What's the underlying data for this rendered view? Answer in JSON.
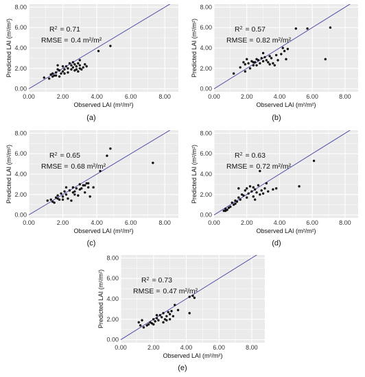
{
  "style": {
    "panel_background": "#ebebeb",
    "grid_color": "#ffffff",
    "point_color": "#111111",
    "line_color": "#3f3fa8"
  },
  "chart_data": [
    {
      "type": "scatter",
      "panel_label": "(a)",
      "xlabel": "Observed LAI (m²/m²)",
      "ylabel": "Predicted LAI (m²/m²)",
      "xlim": [
        0,
        8.8
      ],
      "ylim": [
        -0.3,
        8.3
      ],
      "x_ticks": [
        "0.00",
        "2.00",
        "4.00",
        "6.00",
        "8.00"
      ],
      "y_ticks": [
        "0.00",
        "2.00",
        "4.00",
        "6.00",
        "8.00"
      ],
      "stats": {
        "r2_label": "R",
        "r2_value": "= 0.71",
        "rmse_label": "RMSE =",
        "rmse_value": "0.4 m²/m²"
      },
      "reference_line": "1:1",
      "points": [
        [
          0.9,
          1.1
        ],
        [
          1.2,
          1.0
        ],
        [
          1.3,
          1.4
        ],
        [
          1.4,
          1.2
        ],
        [
          1.5,
          1.3
        ],
        [
          1.6,
          1.6
        ],
        [
          1.7,
          2.3
        ],
        [
          1.8,
          1.8
        ],
        [
          1.9,
          1.5
        ],
        [
          2.0,
          1.7
        ],
        [
          2.1,
          1.9
        ],
        [
          2.2,
          2.2
        ],
        [
          2.3,
          2.0
        ],
        [
          2.4,
          2.5
        ],
        [
          2.5,
          2.3
        ],
        [
          2.5,
          1.9
        ],
        [
          2.6,
          2.1
        ],
        [
          2.7,
          1.8
        ],
        [
          2.7,
          2.4
        ],
        [
          2.8,
          2.2
        ],
        [
          2.9,
          2.5
        ],
        [
          3.0,
          2.0
        ],
        [
          3.0,
          2.3
        ],
        [
          3.1,
          1.9
        ],
        [
          3.2,
          2.1
        ],
        [
          3.3,
          2.4
        ],
        [
          1.6,
          1.3
        ],
        [
          2.0,
          2.2
        ],
        [
          2.3,
          1.6
        ],
        [
          2.8,
          1.9
        ],
        [
          1.8,
          1.2
        ],
        [
          3.4,
          2.2
        ],
        [
          4.1,
          3.7
        ],
        [
          4.8,
          4.2
        ],
        [
          2.6,
          2.6
        ],
        [
          1.4,
          1.5
        ],
        [
          2.1,
          1.5
        ],
        [
          3.0,
          2.8
        ],
        [
          2.9,
          1.7
        ],
        [
          1.7,
          1.9
        ]
      ]
    },
    {
      "type": "scatter",
      "panel_label": "(b)",
      "xlabel": "Observed LAI (m²/m²)",
      "ylabel": "Predicted LAI (m²/m²)",
      "xlim": [
        0,
        8.8
      ],
      "ylim": [
        -0.3,
        8.3
      ],
      "x_ticks": [
        "0.00",
        "2.00",
        "4.00",
        "6.00",
        "8.00"
      ],
      "y_ticks": [
        "0.00",
        "2.00",
        "4.00",
        "6.00",
        "8.00"
      ],
      "stats": {
        "r2_label": "R",
        "r2_value": "= 0.57",
        "rmse_label": "RMSE =",
        "rmse_value": "0.82 m²/m²"
      },
      "reference_line": "1:1",
      "points": [
        [
          1.2,
          1.5
        ],
        [
          1.6,
          2.1
        ],
        [
          1.8,
          2.6
        ],
        [
          1.9,
          2.4
        ],
        [
          2.0,
          2.9
        ],
        [
          2.1,
          2.5
        ],
        [
          2.3,
          2.7
        ],
        [
          2.4,
          2.3
        ],
        [
          2.5,
          2.6
        ],
        [
          2.6,
          2.9
        ],
        [
          2.7,
          2.8
        ],
        [
          2.8,
          2.5
        ],
        [
          2.9,
          3.0
        ],
        [
          3.0,
          2.7
        ],
        [
          3.1,
          3.1
        ],
        [
          3.2,
          2.8
        ],
        [
          3.3,
          2.6
        ],
        [
          3.4,
          3.2
        ],
        [
          3.5,
          3.0
        ],
        [
          3.6,
          2.5
        ],
        [
          3.8,
          3.3
        ],
        [
          3.9,
          2.8
        ],
        [
          4.1,
          3.4
        ],
        [
          4.2,
          4.0
        ],
        [
          4.3,
          3.7
        ],
        [
          4.4,
          2.9
        ],
        [
          4.5,
          3.9
        ],
        [
          5.0,
          5.9
        ],
        [
          5.7,
          5.9
        ],
        [
          6.8,
          2.9
        ],
        [
          7.1,
          6.0
        ],
        [
          3.7,
          2.3
        ],
        [
          2.2,
          2.0
        ],
        [
          1.9,
          1.7
        ],
        [
          3.0,
          3.5
        ],
        [
          2.6,
          2.3
        ],
        [
          2.4,
          2.6
        ],
        [
          3.4,
          2.4
        ]
      ]
    },
    {
      "type": "scatter",
      "panel_label": "(c)",
      "xlabel": "Observed LAI (m²/m²)",
      "ylabel": "Predicted LAI (m²/m²)",
      "xlim": [
        0,
        8.8
      ],
      "ylim": [
        -0.3,
        8.3
      ],
      "x_ticks": [
        "0.00",
        "2.00",
        "4.00",
        "6.00",
        "8.00"
      ],
      "y_ticks": [
        "0.00",
        "2.00",
        "4.00",
        "6.00",
        "8.00"
      ],
      "stats": {
        "r2_label": "R",
        "r2_value": "= 0.65",
        "rmse_label": "RMSE =",
        "rmse_value": "0.68 m²/m²"
      },
      "reference_line": "1:1",
      "points": [
        [
          1.1,
          1.4
        ],
        [
          1.3,
          1.5
        ],
        [
          1.5,
          1.2
        ],
        [
          1.6,
          1.7
        ],
        [
          1.7,
          1.9
        ],
        [
          1.8,
          1.5
        ],
        [
          1.9,
          2.1
        ],
        [
          2.0,
          1.8
        ],
        [
          2.1,
          2.3
        ],
        [
          2.2,
          2.0
        ],
        [
          2.3,
          1.6
        ],
        [
          2.4,
          2.4
        ],
        [
          2.5,
          1.4
        ],
        [
          2.6,
          2.7
        ],
        [
          2.7,
          2.3
        ],
        [
          2.8,
          2.6
        ],
        [
          2.9,
          1.9
        ],
        [
          3.0,
          3.0
        ],
        [
          3.1,
          2.6
        ],
        [
          3.2,
          2.9
        ],
        [
          3.3,
          2.2
        ],
        [
          3.4,
          3.1
        ],
        [
          3.5,
          2.7
        ],
        [
          3.6,
          1.8
        ],
        [
          3.8,
          2.7
        ],
        [
          4.2,
          4.3
        ],
        [
          4.6,
          5.8
        ],
        [
          4.8,
          6.5
        ],
        [
          7.3,
          5.1
        ],
        [
          1.4,
          1.3
        ],
        [
          2.0,
          1.5
        ],
        [
          2.7,
          2.0
        ],
        [
          3.0,
          2.5
        ],
        [
          3.3,
          2.9
        ],
        [
          3.5,
          3.1
        ],
        [
          2.2,
          2.7
        ],
        [
          1.7,
          1.6
        ],
        [
          2.6,
          2.2
        ]
      ]
    },
    {
      "type": "scatter",
      "panel_label": "(d)",
      "xlabel": "Observed LAI (m²/m²)",
      "ylabel": "Predicted LAI (m²/m²)",
      "xlim": [
        0,
        8.8
      ],
      "ylim": [
        -0.3,
        8.3
      ],
      "x_ticks": [
        "0.00",
        "2.00",
        "4.00",
        "6.00",
        "8.00"
      ],
      "y_ticks": [
        "0.00",
        "2.00",
        "4.00",
        "6.00",
        "8.00"
      ],
      "stats": {
        "r2_label": "R",
        "r2_value": "= 0.63",
        "rmse_label": "RMSE =",
        "rmse_value": "0.72 m²/m²"
      },
      "reference_line": "1:1",
      "points": [
        [
          0.6,
          0.4
        ],
        [
          0.7,
          0.6
        ],
        [
          0.8,
          0.5
        ],
        [
          0.9,
          0.7
        ],
        [
          1.0,
          0.8
        ],
        [
          1.1,
          1.2
        ],
        [
          1.2,
          1.0
        ],
        [
          1.3,
          1.4
        ],
        [
          1.4,
          1.3
        ],
        [
          1.5,
          1.7
        ],
        [
          1.6,
          1.5
        ],
        [
          1.7,
          2.0
        ],
        [
          1.8,
          1.9
        ],
        [
          1.9,
          2.4
        ],
        [
          2.0,
          2.6
        ],
        [
          2.1,
          2.1
        ],
        [
          2.2,
          2.8
        ],
        [
          2.3,
          2.3
        ],
        [
          2.4,
          1.8
        ],
        [
          2.5,
          2.5
        ],
        [
          2.6,
          2.2
        ],
        [
          2.7,
          2.9
        ],
        [
          2.8,
          2.0
        ],
        [
          2.9,
          2.4
        ],
        [
          3.0,
          2.1
        ],
        [
          3.1,
          2.6
        ],
        [
          3.3,
          2.3
        ],
        [
          3.6,
          2.5
        ],
        [
          3.8,
          2.6
        ],
        [
          5.2,
          2.8
        ],
        [
          6.1,
          5.3
        ],
        [
          1.5,
          2.6
        ],
        [
          2.0,
          1.7
        ],
        [
          2.5,
          1.5
        ],
        [
          3.2,
          3.1
        ],
        [
          2.8,
          4.3
        ],
        [
          1.3,
          1.1
        ],
        [
          0.7,
          0.4
        ],
        [
          2.4,
          2.7
        ]
      ]
    },
    {
      "type": "scatter",
      "panel_label": "(e)",
      "xlabel": "Observed LAI (m²/m²)",
      "ylabel": "Predicted LAI (m²/m²)",
      "xlim": [
        0,
        8.8
      ],
      "ylim": [
        -0.3,
        8.3
      ],
      "x_ticks": [
        "0.00",
        "2.00",
        "4.00",
        "6.00",
        "8.00"
      ],
      "y_ticks": [
        "0.00",
        "2.00",
        "4.00",
        "6.00",
        "8.00"
      ],
      "stats": {
        "r2_label": "R",
        "r2_value": "= 0.73",
        "rmse_label": "RMSE =",
        "rmse_value": "0.47 m²/m²"
      },
      "reference_line": "1:1",
      "points": [
        [
          1.1,
          1.7
        ],
        [
          1.2,
          1.4
        ],
        [
          1.4,
          1.2
        ],
        [
          1.6,
          1.4
        ],
        [
          1.8,
          1.7
        ],
        [
          1.9,
          1.6
        ],
        [
          2.0,
          2.0
        ],
        [
          2.1,
          1.8
        ],
        [
          2.2,
          2.1
        ],
        [
          2.3,
          1.9
        ],
        [
          2.4,
          2.4
        ],
        [
          2.5,
          2.2
        ],
        [
          2.6,
          2.6
        ],
        [
          2.7,
          2.0
        ],
        [
          2.8,
          2.3
        ],
        [
          2.9,
          2.7
        ],
        [
          3.0,
          2.5
        ],
        [
          3.1,
          2.8
        ],
        [
          3.2,
          2.3
        ],
        [
          3.3,
          3.4
        ],
        [
          3.5,
          2.9
        ],
        [
          4.2,
          4.2
        ],
        [
          4.4,
          4.3
        ],
        [
          4.5,
          4.1
        ],
        [
          4.2,
          2.6
        ],
        [
          1.3,
          1.9
        ],
        [
          2.0,
          1.5
        ],
        [
          2.6,
          1.7
        ],
        [
          3.0,
          2.0
        ],
        [
          2.2,
          2.4
        ],
        [
          1.7,
          1.5
        ],
        [
          2.8,
          1.9
        ]
      ]
    }
  ]
}
